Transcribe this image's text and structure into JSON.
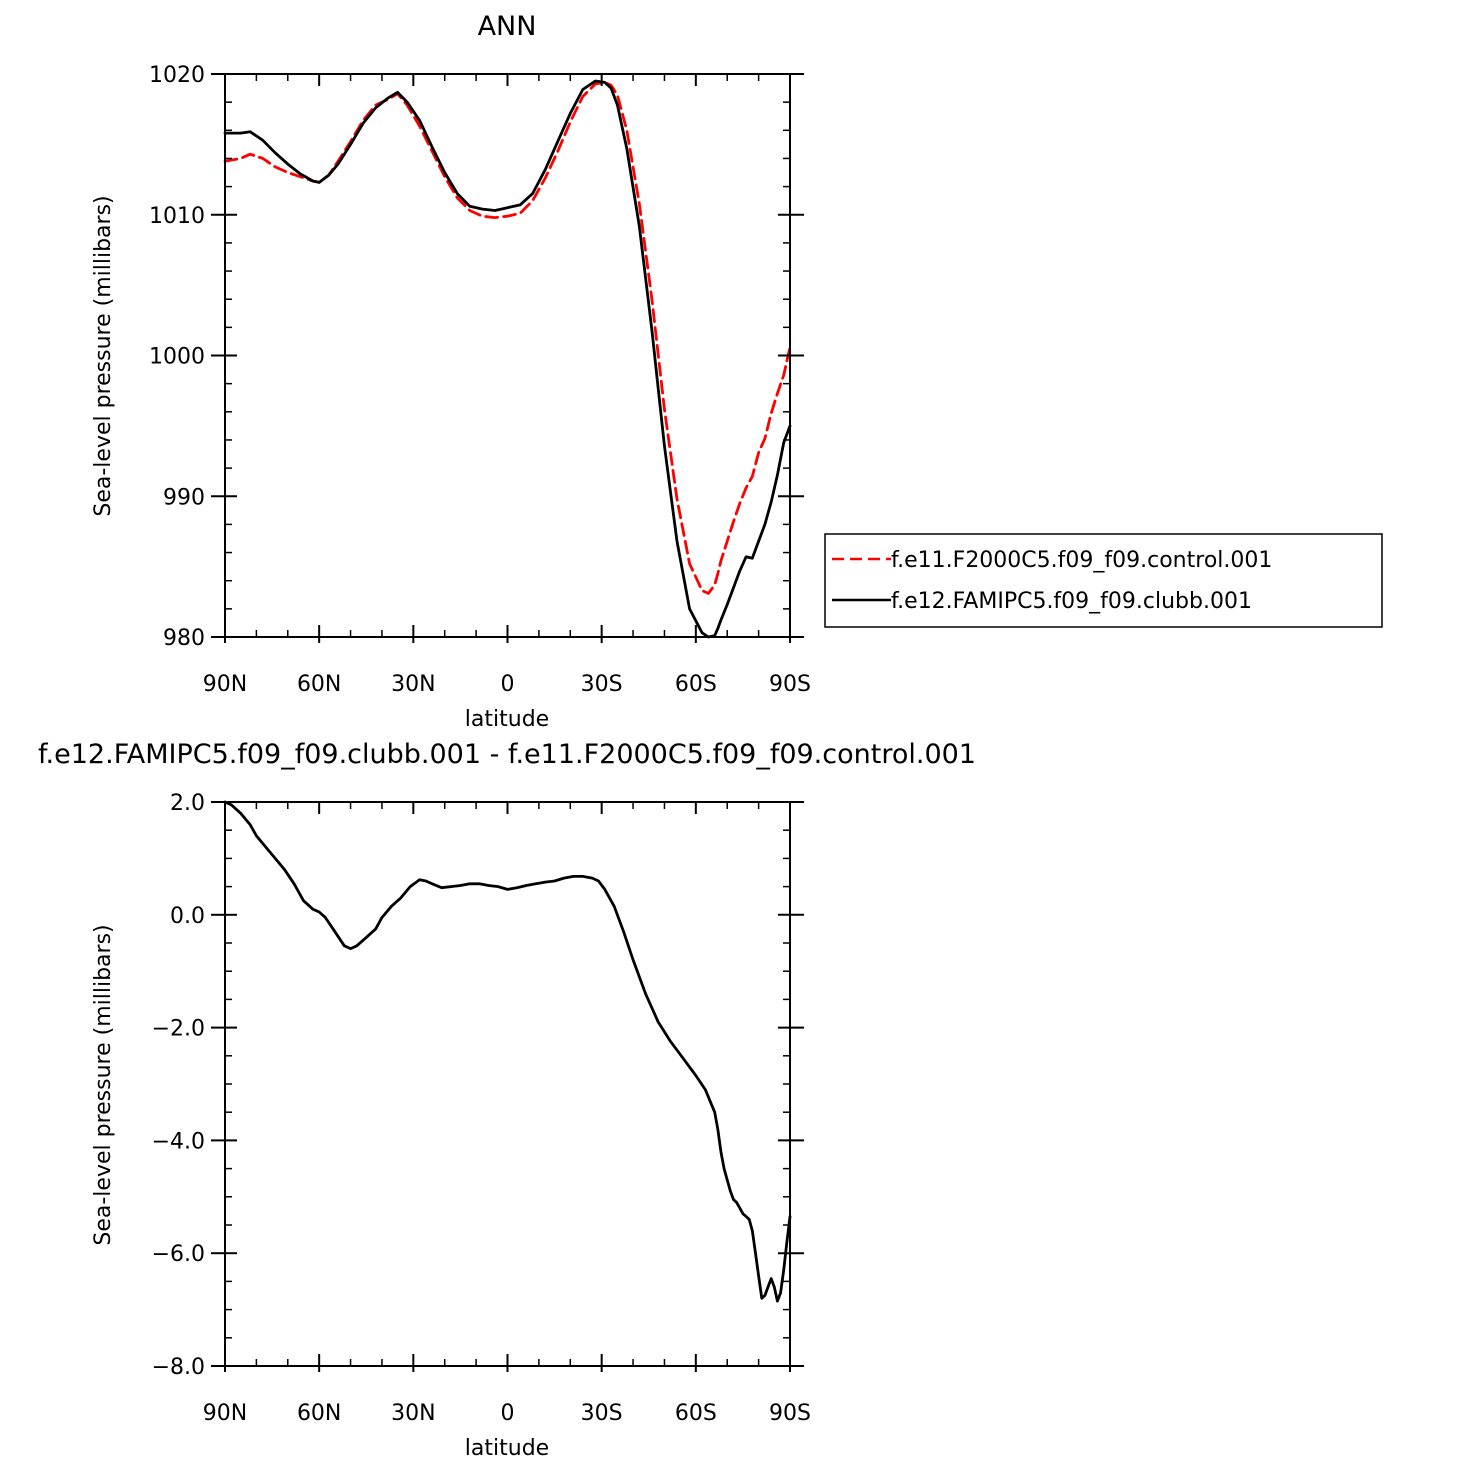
{
  "chart_data": [
    {
      "type": "line",
      "title": "ANN",
      "xlabel": "latitude",
      "ylabel": "Sea-level pressure (millibars)",
      "xlim": [
        -90,
        90
      ],
      "ylim": [
        980,
        1020
      ],
      "xticks": [
        -90,
        -60,
        -30,
        0,
        30,
        60,
        90
      ],
      "xtick_labels": [
        "90N",
        "60N",
        "30N",
        "0",
        "30S",
        "60S",
        "90S"
      ],
      "yticks": [
        980,
        990,
        1000,
        1010,
        1020
      ],
      "ytick_labels": [
        "980",
        "990",
        "1000",
        "1010",
        "1020"
      ],
      "grid": false,
      "legend_placement": "right",
      "series": [
        {
          "name": "f.e11.F2000C5.f09_f09.control.001",
          "color": "#ff0000",
          "style": "dashed",
          "x": [
            -90,
            -85,
            -82,
            -78,
            -74,
            -70,
            -66,
            -62,
            -60,
            -57,
            -54,
            -50,
            -46,
            -42,
            -38,
            -35,
            -32,
            -28,
            -24,
            -20,
            -16,
            -12,
            -8,
            -4,
            0,
            4,
            8,
            12,
            16,
            20,
            24,
            28,
            31,
            33,
            35,
            38,
            42,
            46,
            50,
            54,
            58,
            62,
            64,
            66,
            67,
            68,
            70,
            72,
            74,
            76,
            78,
            80,
            82,
            84,
            86,
            88,
            90
          ],
          "y": [
            1013.8,
            1014.0,
            1014.3,
            1014.0,
            1013.4,
            1013.0,
            1012.7,
            1012.4,
            1012.3,
            1012.8,
            1013.8,
            1015.2,
            1016.7,
            1017.8,
            1018.2,
            1018.6,
            1017.8,
            1016.3,
            1014.5,
            1012.7,
            1011.2,
            1010.3,
            1009.9,
            1009.8,
            1009.9,
            1010.1,
            1011.0,
            1012.6,
            1014.5,
            1016.6,
            1018.4,
            1019.3,
            1019.4,
            1019.2,
            1018.5,
            1016.0,
            1010.8,
            1004.0,
            996.2,
            989.8,
            985.2,
            983.3,
            983.1,
            983.7,
            984.5,
            985.4,
            986.8,
            988.2,
            989.5,
            990.6,
            991.4,
            993.1,
            994.1,
            995.9,
            997.3,
            998.6,
            1000.6
          ]
        },
        {
          "name": "f.e12.FAMIPC5.f09_f09.clubb.001",
          "color": "#000000",
          "style": "solid",
          "x": [
            -90,
            -85,
            -82,
            -78,
            -74,
            -70,
            -66,
            -62,
            -60,
            -57,
            -54,
            -50,
            -46,
            -42,
            -38,
            -35,
            -32,
            -28,
            -24,
            -20,
            -16,
            -12,
            -8,
            -4,
            0,
            4,
            8,
            12,
            16,
            20,
            24,
            28,
            31,
            33,
            35,
            38,
            42,
            46,
            50,
            54,
            58,
            62,
            64,
            66,
            67,
            68,
            70,
            72,
            74,
            76,
            78,
            80,
            82,
            84,
            86,
            88,
            90
          ],
          "y": [
            1015.8,
            1015.8,
            1015.9,
            1015.3,
            1014.4,
            1013.6,
            1012.9,
            1012.4,
            1012.3,
            1012.8,
            1013.6,
            1015.0,
            1016.5,
            1017.6,
            1018.3,
            1018.7,
            1018.0,
            1016.7,
            1014.8,
            1013.0,
            1011.5,
            1010.6,
            1010.4,
            1010.3,
            1010.5,
            1010.7,
            1011.5,
            1013.2,
            1015.2,
            1017.2,
            1018.9,
            1019.5,
            1019.4,
            1019.0,
            1017.8,
            1014.7,
            1009.2,
            1001.8,
            993.6,
            986.8,
            982.0,
            980.3,
            980.0,
            980.1,
            980.6,
            981.2,
            982.3,
            983.5,
            984.7,
            985.7,
            985.6,
            986.8,
            988.0,
            989.6,
            991.5,
            993.8,
            995.0
          ]
        }
      ]
    },
    {
      "type": "line",
      "title": "f.e12.FAMIPC5.f09_f09.clubb.001 - f.e11.F2000C5.f09_f09.control.001",
      "xlabel": "latitude",
      "ylabel": "Sea-level pressure (millibars)",
      "xlim": [
        -90,
        90
      ],
      "ylim": [
        -8,
        2
      ],
      "xticks": [
        -90,
        -60,
        -30,
        0,
        30,
        60,
        90
      ],
      "xtick_labels": [
        "90N",
        "60N",
        "30N",
        "0",
        "30S",
        "60S",
        "90S"
      ],
      "yticks": [
        -8,
        -6,
        -4,
        -2,
        0,
        2
      ],
      "ytick_labels": [
        "−8.0",
        "−6.0",
        "−4.0",
        "−2.0",
        "0.0",
        "2.0"
      ],
      "grid": false,
      "series": [
        {
          "color": "#000000",
          "style": "solid",
          "x": [
            -90,
            -88,
            -85,
            -82,
            -80,
            -77,
            -74,
            -71,
            -68,
            -65,
            -62,
            -60,
            -58,
            -55,
            -52,
            -50,
            -48,
            -45,
            -42,
            -40,
            -37,
            -34,
            -31,
            -28,
            -26,
            -24,
            -21,
            -18,
            -15,
            -12,
            -9,
            -6,
            -3,
            0,
            3,
            6,
            9,
            12,
            15,
            18,
            21,
            24,
            27,
            29,
            31,
            34,
            37,
            40,
            44,
            48,
            52,
            56,
            60,
            63,
            66,
            67,
            68,
            69,
            70,
            71,
            72,
            73,
            74,
            75,
            76,
            77,
            78,
            79,
            80,
            81,
            82,
            83,
            84,
            85,
            86,
            87,
            88,
            89,
            90
          ],
          "y": [
            2.0,
            1.95,
            1.8,
            1.6,
            1.4,
            1.2,
            1.0,
            0.8,
            0.55,
            0.25,
            0.1,
            0.05,
            -0.05,
            -0.3,
            -0.55,
            -0.6,
            -0.55,
            -0.4,
            -0.25,
            -0.05,
            0.15,
            0.3,
            0.5,
            0.62,
            0.6,
            0.55,
            0.48,
            0.5,
            0.52,
            0.55,
            0.55,
            0.52,
            0.5,
            0.45,
            0.48,
            0.52,
            0.55,
            0.58,
            0.6,
            0.65,
            0.68,
            0.68,
            0.65,
            0.6,
            0.45,
            0.15,
            -0.3,
            -0.8,
            -1.4,
            -1.9,
            -2.25,
            -2.55,
            -2.85,
            -3.1,
            -3.5,
            -3.8,
            -4.2,
            -4.5,
            -4.7,
            -4.9,
            -5.05,
            -5.1,
            -5.2,
            -5.3,
            -5.35,
            -5.4,
            -5.6,
            -6.0,
            -6.4,
            -6.8,
            -6.75,
            -6.6,
            -6.45,
            -6.6,
            -6.85,
            -6.7,
            -6.3,
            -5.8,
            -5.35
          ]
        }
      ]
    }
  ]
}
